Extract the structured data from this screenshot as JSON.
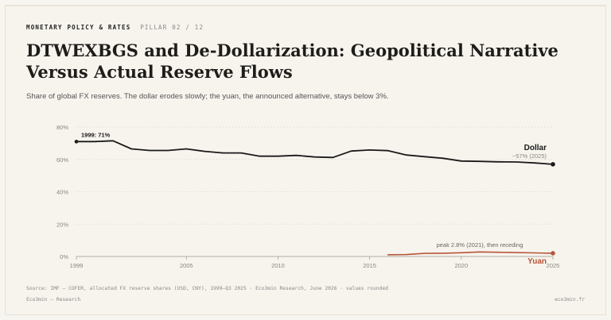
{
  "header": {
    "section": "MONETARY POLICY & RATES",
    "pillar": "PILLAR 02 / 12",
    "title_line1": "DTWEXBGS and De-Dollarization: Geopolitical Narrative",
    "title_line2": "Versus Actual Reserve Flows",
    "subtitle": "Share of global FX reserves. The dollar erodes slowly; the yuan, the announced alternative, stays below 3%."
  },
  "colors": {
    "dollar": "#1a1a1a",
    "yuan": "#b5553a",
    "grid": "#d9d4ca",
    "axis_text": "#8a857c",
    "background": "#f7f4ee"
  },
  "chart_data": {
    "type": "line",
    "x_ticks": [
      1999,
      2005,
      2010,
      2015,
      2020,
      2025
    ],
    "y_ticks": [
      "0%",
      "20%",
      "40%",
      "60%",
      "80%"
    ],
    "y_tick_values": [
      0,
      20,
      40,
      60,
      80
    ],
    "xlim": [
      1999,
      2025
    ],
    "ylim": [
      0,
      80
    ],
    "grid": true,
    "series": [
      {
        "name": "Dollar",
        "color_key": "dollar",
        "x": [
          1999,
          2000,
          2001,
          2002,
          2003,
          2004,
          2005,
          2006,
          2007,
          2008,
          2009,
          2010,
          2011,
          2012,
          2013,
          2014,
          2015,
          2016,
          2017,
          2018,
          2019,
          2020,
          2021,
          2022,
          2023,
          2024,
          2025
        ],
        "y": [
          71,
          71,
          71.5,
          66.5,
          65.5,
          65.5,
          66.5,
          65,
          64,
          64,
          62,
          62,
          62.5,
          61.5,
          61.2,
          65.2,
          65.8,
          65.4,
          62.7,
          61.7,
          60.7,
          59,
          58.8,
          58.5,
          58.4,
          57.8,
          57
        ]
      },
      {
        "name": "Yuan",
        "color_key": "yuan",
        "x": [
          2016,
          2017,
          2018,
          2019,
          2020,
          2021,
          2022,
          2023,
          2024,
          2025
        ],
        "y": [
          1.1,
          1.2,
          1.9,
          2.0,
          2.3,
          2.8,
          2.6,
          2.4,
          2.2,
          2.0
        ]
      }
    ],
    "annotations": {
      "dollar_start": "1999: 71%",
      "dollar_label": "Dollar",
      "dollar_end": "~57% (2025)",
      "yuan_label": "Yuan",
      "yuan_peak": "peak 2.8% (2021), then receding"
    }
  },
  "footer": {
    "source": "Source: IMF — COFER, allocated FX reserve shares (USD, CNY), 1999–Q3 2025 · Eco3min Research, June 2026 · values rounded",
    "brand": "Eco3min — Research",
    "site": "eco3min.fr"
  }
}
